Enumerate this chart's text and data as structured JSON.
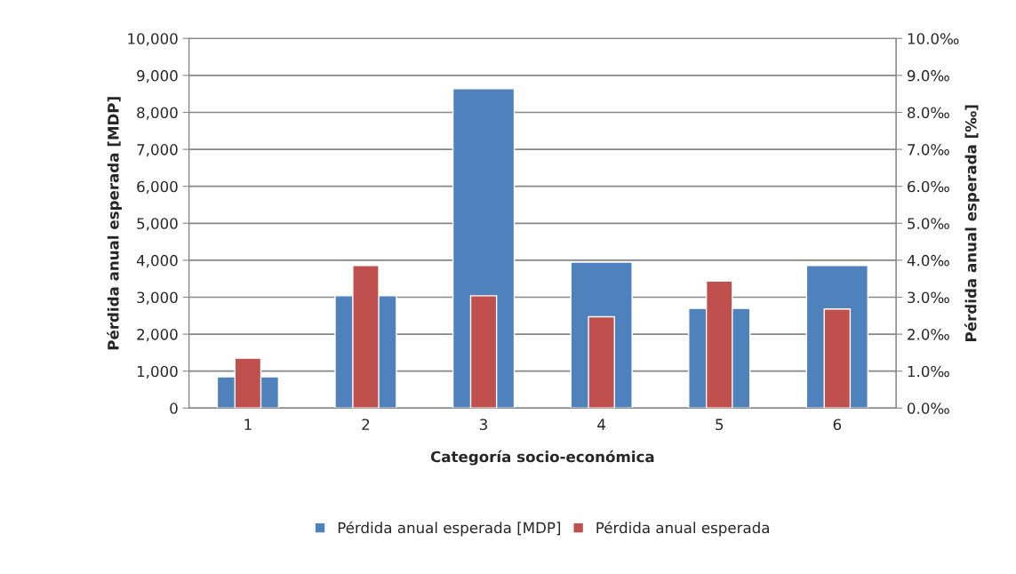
{
  "chart_data": {
    "type": "bar",
    "xlabel": "Categoría socio-económica",
    "ylabel": "Pérdida anual esperada [MDP]",
    "y2label": "Pérdida anual esperada [‰]",
    "categories": [
      "1",
      "2",
      "3",
      "4",
      "5",
      "6"
    ],
    "series": [
      {
        "name": "Pérdida anual esperada [MDP]",
        "color": "#4f81bd",
        "values": [
          850,
          3040,
          8640,
          3950,
          2700,
          3860
        ]
      },
      {
        "name": "Pérdida anual esperada",
        "color": "#c0504d",
        "axis": "y2",
        "values": [
          1.35,
          3.86,
          3.04,
          2.47,
          3.44,
          2.68
        ]
      }
    ],
    "ylim": [
      0,
      10000
    ],
    "yticks": [
      0,
      {
        "value": 1000,
        "label": "1,000"
      },
      {
        "value": 2000,
        "label": "2,000"
      },
      {
        "value": 3000,
        "label": "3,000"
      },
      {
        "value": 4000,
        "label": "4,000"
      },
      {
        "value": 5000,
        "label": "5,000"
      },
      {
        "value": 6000,
        "label": "6,000"
      },
      {
        "value": 7000,
        "label": "7,000"
      },
      {
        "value": 8000,
        "label": "8,000"
      },
      {
        "value": 9000,
        "label": "9,000"
      },
      {
        "value": 10000,
        "label": "10,000"
      }
    ],
    "y2lim": [
      0,
      10
    ],
    "y2ticks": [
      {
        "value": 0,
        "label": "0.0‰"
      },
      {
        "value": 1,
        "label": "1.0‰"
      },
      {
        "value": 2,
        "label": "2.0‰"
      },
      {
        "value": 3,
        "label": "3.0‰"
      },
      {
        "value": 4,
        "label": "4.0‰"
      },
      {
        "value": 5,
        "label": "5.0‰"
      },
      {
        "value": 6,
        "label": "6.0‰"
      },
      {
        "value": 7,
        "label": "7.0‰"
      },
      {
        "value": 8,
        "label": "8.0‰"
      },
      {
        "value": 9,
        "label": "9.0‰"
      },
      {
        "value": 10,
        "label": "10.0‰"
      }
    ],
    "grid": "y",
    "legend": "bottom"
  }
}
